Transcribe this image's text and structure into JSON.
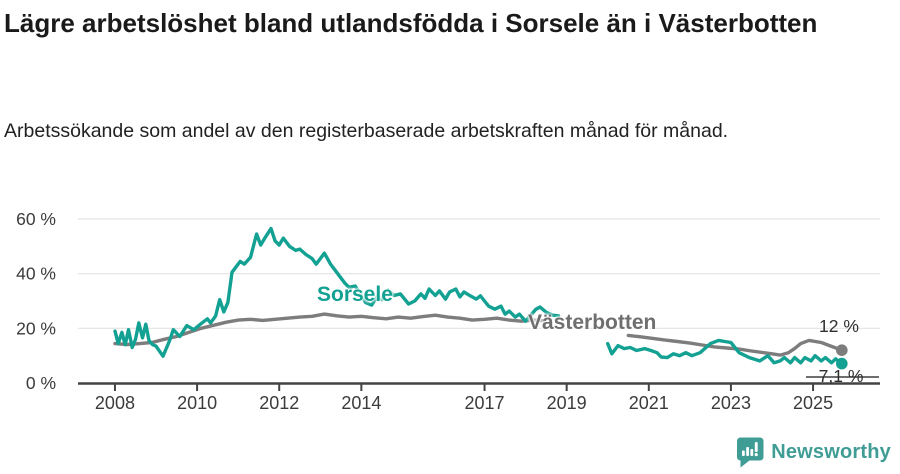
{
  "header": {
    "title": "Lägre arbetslöshet bland utlandsfödda i Sorsele än i Västerbotten",
    "subtitle": "Arbetssökande som andel av den registerbaserade arbetskraften månad för månad."
  },
  "footer": {
    "brand_name": "Newsworthy"
  },
  "colors": {
    "sorsele_line": "#12a192",
    "vasterbotten_line": "#7d7d7d",
    "vasterbotten_label": "#6f6f6f",
    "grid": "#e3e3e3",
    "axis": "#434343",
    "tick_text": "#3b3b3b",
    "title_text": "#1a1a1a",
    "brand_teal": "#3f9d95"
  },
  "chart_data": {
    "type": "line",
    "title": "Lägre arbetslöshet bland utlandsfödda i Sorsele än i Västerbotten",
    "subtitle": "Arbetssökande som andel av den registerbaserade arbetskraften månad för månad.",
    "xlabel": "",
    "ylabel": "",
    "unit": "%",
    "grid": true,
    "legend_position": "inline-labels-on-lines",
    "x_axis": {
      "lim": [
        2007.1,
        2026.63
      ],
      "ticks": [
        {
          "value": 2008,
          "label": "2008"
        },
        {
          "value": 2010,
          "label": "2010"
        },
        {
          "value": 2012,
          "label": "2012"
        },
        {
          "value": 2014,
          "label": "2014"
        },
        {
          "value": 2017,
          "label": "2017"
        },
        {
          "value": 2019,
          "label": "2019"
        },
        {
          "value": 2021,
          "label": "2021"
        },
        {
          "value": 2023,
          "label": "2023"
        },
        {
          "value": 2025,
          "label": "2025"
        }
      ]
    },
    "y_axis": {
      "lim": [
        0,
        60
      ],
      "ticks": [
        {
          "value": 0,
          "label": "0 %"
        },
        {
          "value": 20,
          "label": "20 %"
        },
        {
          "value": 40,
          "label": "40 %"
        },
        {
          "value": 60,
          "label": "60 %"
        }
      ]
    },
    "data_gap_note": "both series have a break in the data between about 2019 and 2020",
    "series": [
      {
        "name": "Västerbotten",
        "color": "#7d7d7d",
        "end_label": "12 %",
        "end_value": 12,
        "segments": [
          [
            [
              2008.0,
              14.4
            ],
            [
              2008.3,
              14.1
            ],
            [
              2008.6,
              14.4
            ],
            [
              2008.9,
              14.8
            ],
            [
              2009.2,
              16.0
            ],
            [
              2009.5,
              17.0
            ],
            [
              2009.8,
              18.5
            ],
            [
              2010.1,
              20.0
            ],
            [
              2010.4,
              21.1
            ],
            [
              2010.7,
              22.2
            ],
            [
              2011.0,
              23.0
            ],
            [
              2011.3,
              23.3
            ],
            [
              2011.6,
              22.9
            ],
            [
              2011.9,
              23.3
            ],
            [
              2012.2,
              23.7
            ],
            [
              2012.5,
              24.1
            ],
            [
              2012.8,
              24.4
            ],
            [
              2013.1,
              25.2
            ],
            [
              2013.4,
              24.6
            ],
            [
              2013.7,
              24.1
            ],
            [
              2014.0,
              24.4
            ],
            [
              2014.3,
              23.9
            ],
            [
              2014.6,
              23.5
            ],
            [
              2014.9,
              24.1
            ],
            [
              2015.2,
              23.7
            ],
            [
              2015.5,
              24.3
            ],
            [
              2015.8,
              24.8
            ],
            [
              2016.1,
              24.1
            ],
            [
              2016.4,
              23.7
            ],
            [
              2016.7,
              23.0
            ],
            [
              2017.0,
              23.3
            ],
            [
              2017.3,
              23.7
            ],
            [
              2017.6,
              23.0
            ],
            [
              2017.9,
              22.6
            ],
            [
              2018.2,
              23.0
            ],
            [
              2018.45,
              22.8
            ],
            [
              2018.6,
              22.2
            ]
          ],
          [
            [
              2020.5,
              17.4
            ],
            [
              2020.8,
              16.9
            ],
            [
              2021.1,
              16.3
            ],
            [
              2021.4,
              15.7
            ],
            [
              2021.7,
              15.2
            ],
            [
              2022.0,
              14.6
            ],
            [
              2022.3,
              13.9
            ],
            [
              2022.6,
              13.2
            ],
            [
              2022.9,
              12.8
            ],
            [
              2023.2,
              12.4
            ],
            [
              2023.5,
              11.7
            ],
            [
              2023.8,
              11.1
            ],
            [
              2024.0,
              10.7
            ],
            [
              2024.2,
              10.2
            ],
            [
              2024.4,
              11.1
            ],
            [
              2024.55,
              12.6
            ],
            [
              2024.7,
              14.4
            ],
            [
              2024.9,
              15.6
            ],
            [
              2025.2,
              14.8
            ],
            [
              2025.4,
              13.7
            ],
            [
              2025.6,
              12.6
            ],
            [
              2025.7,
              12.0
            ]
          ]
        ]
      },
      {
        "name": "Sorsele",
        "color": "#12a192",
        "end_label": "7,1 %",
        "end_value": 7.1,
        "segments": [
          [
            [
              2008.0,
              19.0
            ],
            [
              2008.08,
              14.5
            ],
            [
              2008.17,
              18.5
            ],
            [
              2008.25,
              14.0
            ],
            [
              2008.33,
              19.5
            ],
            [
              2008.42,
              13.0
            ],
            [
              2008.5,
              16.0
            ],
            [
              2008.58,
              22.0
            ],
            [
              2008.67,
              16.5
            ],
            [
              2008.75,
              21.5
            ],
            [
              2008.83,
              15.5
            ],
            [
              2008.92,
              14.0
            ],
            [
              2009.0,
              13.5
            ],
            [
              2009.17,
              9.8
            ],
            [
              2009.33,
              15.5
            ],
            [
              2009.42,
              19.5
            ],
            [
              2009.58,
              17.0
            ],
            [
              2009.75,
              21.0
            ],
            [
              2009.92,
              19.5
            ],
            [
              2010.08,
              21.5
            ],
            [
              2010.25,
              23.5
            ],
            [
              2010.33,
              22.0
            ],
            [
              2010.45,
              24.5
            ],
            [
              2010.55,
              30.5
            ],
            [
              2010.65,
              26.0
            ],
            [
              2010.75,
              29.5
            ],
            [
              2010.85,
              40.5
            ],
            [
              2010.95,
              42.5
            ],
            [
              2011.05,
              44.5
            ],
            [
              2011.15,
              43.5
            ],
            [
              2011.3,
              46.0
            ],
            [
              2011.45,
              54.5
            ],
            [
              2011.55,
              50.5
            ],
            [
              2011.65,
              53.0
            ],
            [
              2011.8,
              56.5
            ],
            [
              2011.9,
              52.0
            ],
            [
              2012.0,
              50.5
            ],
            [
              2012.1,
              53.0
            ],
            [
              2012.25,
              50.0
            ],
            [
              2012.4,
              48.5
            ],
            [
              2012.5,
              49.0
            ],
            [
              2012.65,
              47.0
            ],
            [
              2012.8,
              45.5
            ],
            [
              2012.9,
              43.5
            ],
            [
              2013.0,
              45.5
            ],
            [
              2013.1,
              47.5
            ],
            [
              2013.25,
              43.5
            ],
            [
              2013.4,
              40.5
            ],
            [
              2013.5,
              38.5
            ],
            [
              2013.6,
              36.5
            ],
            [
              2013.7,
              35.0
            ],
            [
              2013.85,
              35.5
            ],
            [
              2014.0,
              32.0
            ],
            [
              2014.1,
              29.5
            ],
            [
              2014.25,
              28.5
            ],
            [
              2014.4,
              32.0
            ],
            [
              2014.5,
              30.5
            ],
            [
              2014.65,
              34.0
            ],
            [
              2014.8,
              32.0
            ],
            [
              2014.95,
              32.6
            ],
            [
              2015.15,
              28.9
            ],
            [
              2015.3,
              30.0
            ],
            [
              2015.45,
              32.6
            ],
            [
              2015.55,
              31.0
            ],
            [
              2015.65,
              34.4
            ],
            [
              2015.8,
              32.0
            ],
            [
              2015.9,
              33.7
            ],
            [
              2016.05,
              30.7
            ],
            [
              2016.15,
              33.3
            ],
            [
              2016.3,
              34.4
            ],
            [
              2016.4,
              31.5
            ],
            [
              2016.5,
              33.3
            ],
            [
              2016.65,
              31.9
            ],
            [
              2016.8,
              30.7
            ],
            [
              2016.9,
              31.9
            ],
            [
              2017.0,
              30.0
            ],
            [
              2017.1,
              28.1
            ],
            [
              2017.25,
              27.0
            ],
            [
              2017.4,
              28.1
            ],
            [
              2017.5,
              25.2
            ],
            [
              2017.6,
              26.3
            ],
            [
              2017.75,
              24.1
            ],
            [
              2017.85,
              25.2
            ],
            [
              2018.0,
              22.6
            ],
            [
              2018.1,
              24.4
            ],
            [
              2018.25,
              27.0
            ],
            [
              2018.35,
              27.8
            ],
            [
              2018.5,
              25.9
            ],
            [
              2018.65,
              24.8
            ],
            [
              2018.8,
              24.6
            ]
          ],
          [
            [
              2020.0,
              14.4
            ],
            [
              2020.1,
              10.7
            ],
            [
              2020.25,
              13.7
            ],
            [
              2020.4,
              12.6
            ],
            [
              2020.55,
              13.0
            ],
            [
              2020.7,
              11.9
            ],
            [
              2020.9,
              12.6
            ],
            [
              2021.05,
              11.9
            ],
            [
              2021.2,
              11.1
            ],
            [
              2021.3,
              9.5
            ],
            [
              2021.45,
              9.3
            ],
            [
              2021.6,
              10.7
            ],
            [
              2021.75,
              10.0
            ],
            [
              2021.9,
              11.1
            ],
            [
              2022.05,
              10.0
            ],
            [
              2022.25,
              11.1
            ],
            [
              2022.5,
              14.4
            ],
            [
              2022.7,
              15.6
            ],
            [
              2022.85,
              15.2
            ],
            [
              2023.0,
              14.8
            ],
            [
              2023.2,
              11.1
            ],
            [
              2023.45,
              9.3
            ],
            [
              2023.7,
              8.1
            ],
            [
              2023.9,
              10.0
            ],
            [
              2024.05,
              7.4
            ],
            [
              2024.2,
              8.1
            ],
            [
              2024.3,
              9.3
            ],
            [
              2024.45,
              7.4
            ],
            [
              2024.55,
              9.3
            ],
            [
              2024.7,
              7.4
            ],
            [
              2024.8,
              9.3
            ],
            [
              2024.95,
              8.1
            ],
            [
              2025.05,
              10.0
            ],
            [
              2025.2,
              8.1
            ],
            [
              2025.3,
              9.3
            ],
            [
              2025.45,
              7.4
            ],
            [
              2025.55,
              8.8
            ],
            [
              2025.7,
              7.1
            ]
          ]
        ]
      }
    ]
  }
}
